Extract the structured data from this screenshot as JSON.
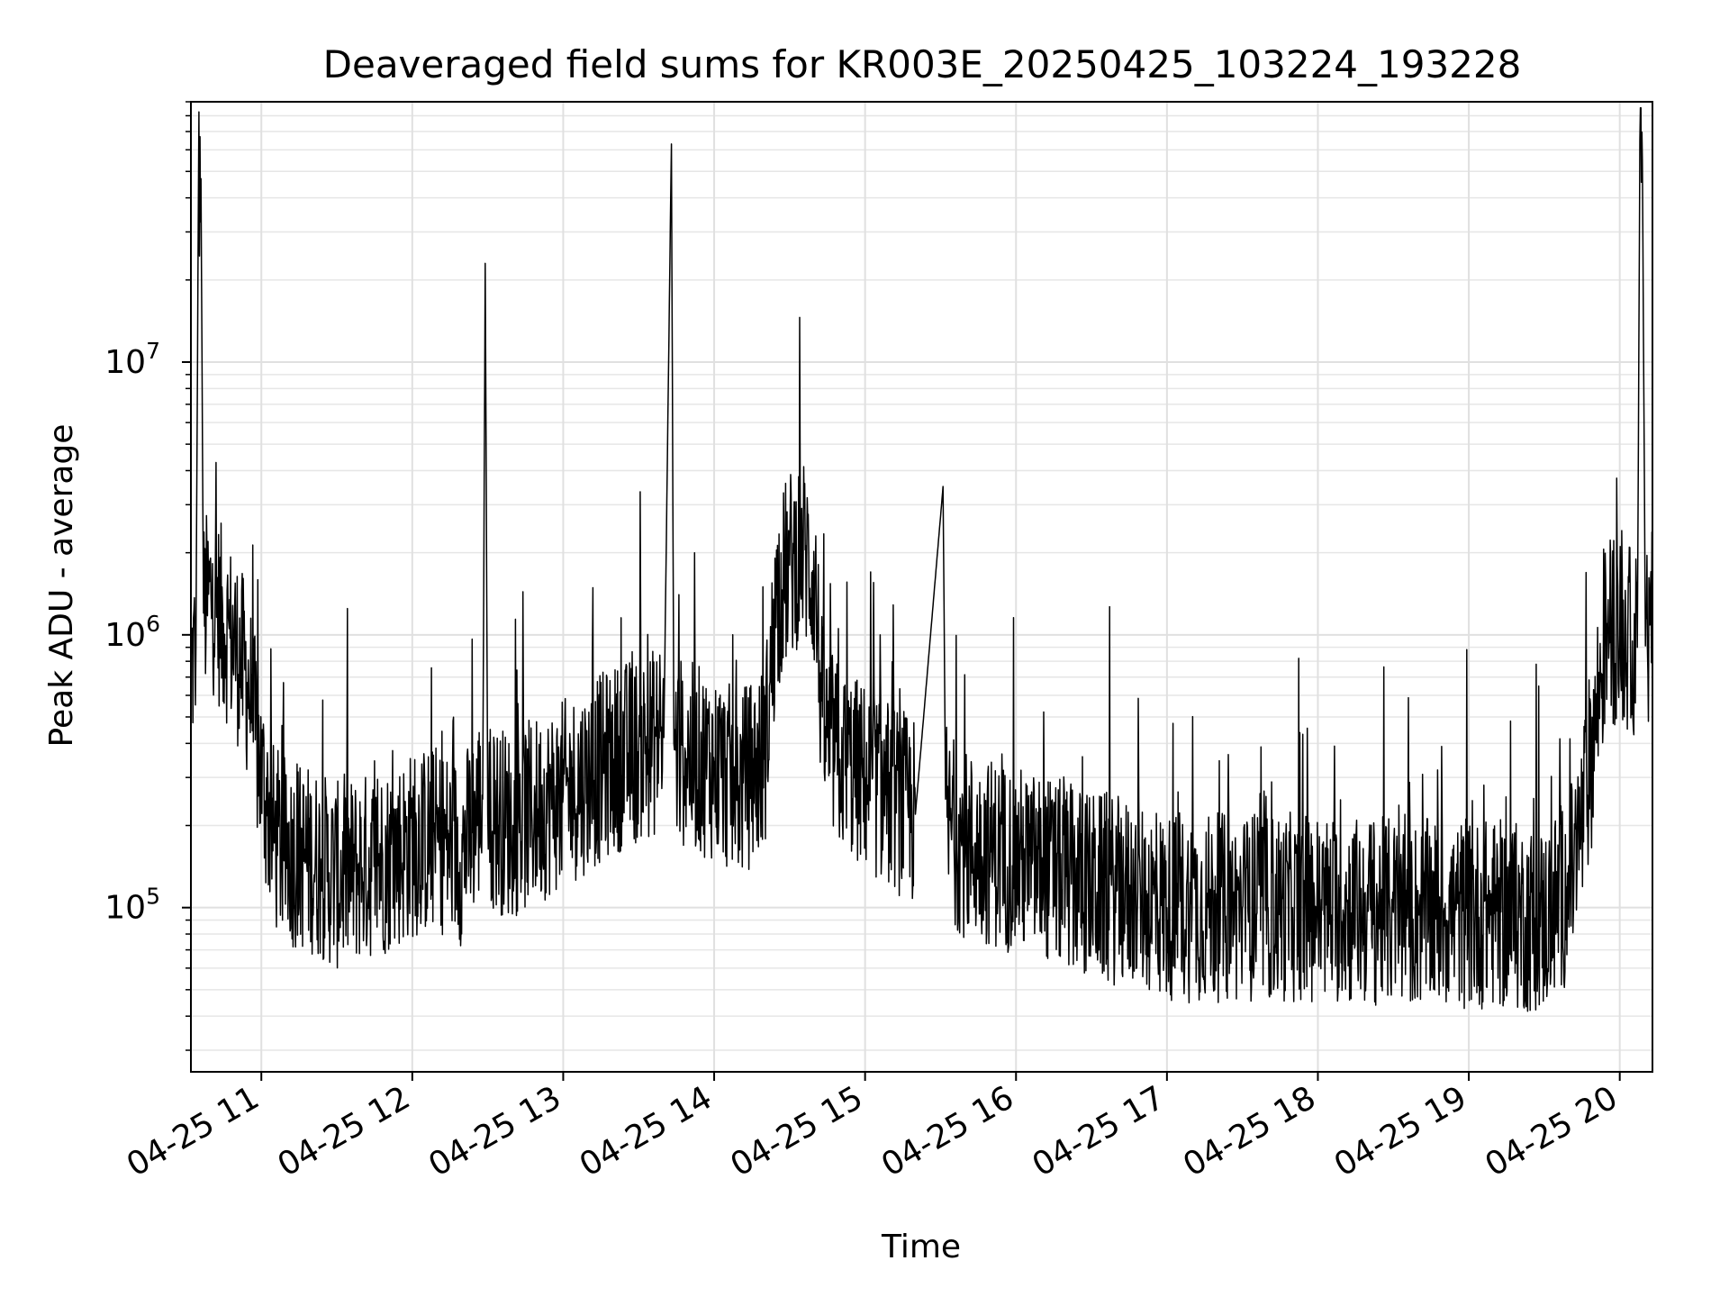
{
  "chart_data": {
    "type": "line",
    "title": "Deaveraged field sums for KR003E_20250425_103224_193228",
    "xlabel": "Time",
    "ylabel": "Peak ADU - average",
    "yscale": "log",
    "ylim": [
      25000,
      90000000
    ],
    "xlim": [
      "04-25 10:32",
      "04-25 20:13"
    ],
    "grid": true,
    "legend": "none",
    "x_ticks": [
      "04-25 11",
      "04-25 12",
      "04-25 13",
      "04-25 14",
      "04-25 15",
      "04-25 16",
      "04-25 17",
      "04-25 18",
      "04-25 19",
      "04-25 20"
    ],
    "y_ticks": [
      {
        "value": 100000,
        "base": "10",
        "exp": "5"
      },
      {
        "value": 1000000,
        "base": "10",
        "exp": "6"
      },
      {
        "value": 10000000,
        "base": "10",
        "exp": "7"
      }
    ],
    "series_color": "#000000",
    "series": [
      {
        "x": [
          "04-25 10:32",
          "04-25 10:34",
          "04-25 10:35",
          "04-25 10:36",
          "04-25 10:37",
          "04-25 10:40",
          "04-25 10:45",
          "04-25 10:50",
          "04-25 10:55",
          "04-25 11:00",
          "04-25 11:05",
          "04-25 11:10",
          "04-25 11:20",
          "04-25 11:30",
          "04-25 11:40",
          "04-25 11:50",
          "04-25 12:00",
          "04-25 12:10",
          "04-25 12:20",
          "04-25 12:28",
          "04-25 12:29",
          "04-25 12:30",
          "04-25 12:40",
          "04-25 12:50",
          "04-25 13:00",
          "04-25 13:10",
          "04-25 13:20",
          "04-25 13:30",
          "04-25 13:40",
          "04-25 13:43",
          "04-25 13:44",
          "04-25 13:45",
          "04-25 13:50",
          "04-25 14:00",
          "04-25 14:10",
          "04-25 14:20",
          "04-25 14:25",
          "04-25 14:30",
          "04-25 14:35",
          "04-25 14:40",
          "04-25 14:43",
          "04-25 14:45",
          "04-25 14:50",
          "04-25 15:00",
          "04-25 15:10",
          "04-25 15:20",
          "04-25 15:31",
          "04-25 15:32",
          "04-25 15:33",
          "04-25 15:40",
          "04-25 15:50",
          "04-25 16:00",
          "04-25 16:10",
          "04-25 16:20",
          "04-25 16:30",
          "04-25 16:40",
          "04-25 16:50",
          "04-25 17:00",
          "04-25 17:10",
          "04-25 17:20",
          "04-25 17:30",
          "04-25 17:40",
          "04-25 17:50",
          "04-25 18:00",
          "04-25 18:10",
          "04-25 18:20",
          "04-25 18:30",
          "04-25 18:40",
          "04-25 18:50",
          "04-25 19:00",
          "04-25 19:10",
          "04-25 19:20",
          "04-25 19:30",
          "04-25 19:40",
          "04-25 19:45",
          "04-25 19:50",
          "04-25 19:55",
          "04-25 20:00",
          "04-25 20:05",
          "04-25 20:07",
          "04-25 20:08",
          "04-25 20:09",
          "04-25 20:10",
          "04-25 20:11",
          "04-25 20:13"
        ],
        "y": [
          750000,
          900000,
          45000000,
          47000000,
          1200000,
          1400000,
          1100000,
          900000,
          650000,
          300000,
          180000,
          160000,
          150000,
          130000,
          140000,
          150000,
          170000,
          180000,
          160000,
          250000,
          23000000,
          220000,
          200000,
          230000,
          260000,
          300000,
          350000,
          380000,
          420000,
          63000000,
          400000,
          380000,
          360000,
          330000,
          280000,
          350000,
          1400000,
          1800000,
          2100000,
          1600000,
          500000,
          420000,
          350000,
          300000,
          260000,
          220000,
          3500000,
          250000,
          200000,
          170000,
          160000,
          150000,
          140000,
          130000,
          120000,
          115000,
          110000,
          100000,
          100000,
          100000,
          100000,
          100000,
          100000,
          100000,
          98000,
          97000,
          96000,
          95000,
          95000,
          94000,
          95000,
          92000,
          90000,
          120000,
          200000,
          450000,
          1100000,
          1000000,
          950000,
          900000,
          65000000,
          55000000,
          1800000,
          900000,
          1100000
        ]
      }
    ]
  }
}
